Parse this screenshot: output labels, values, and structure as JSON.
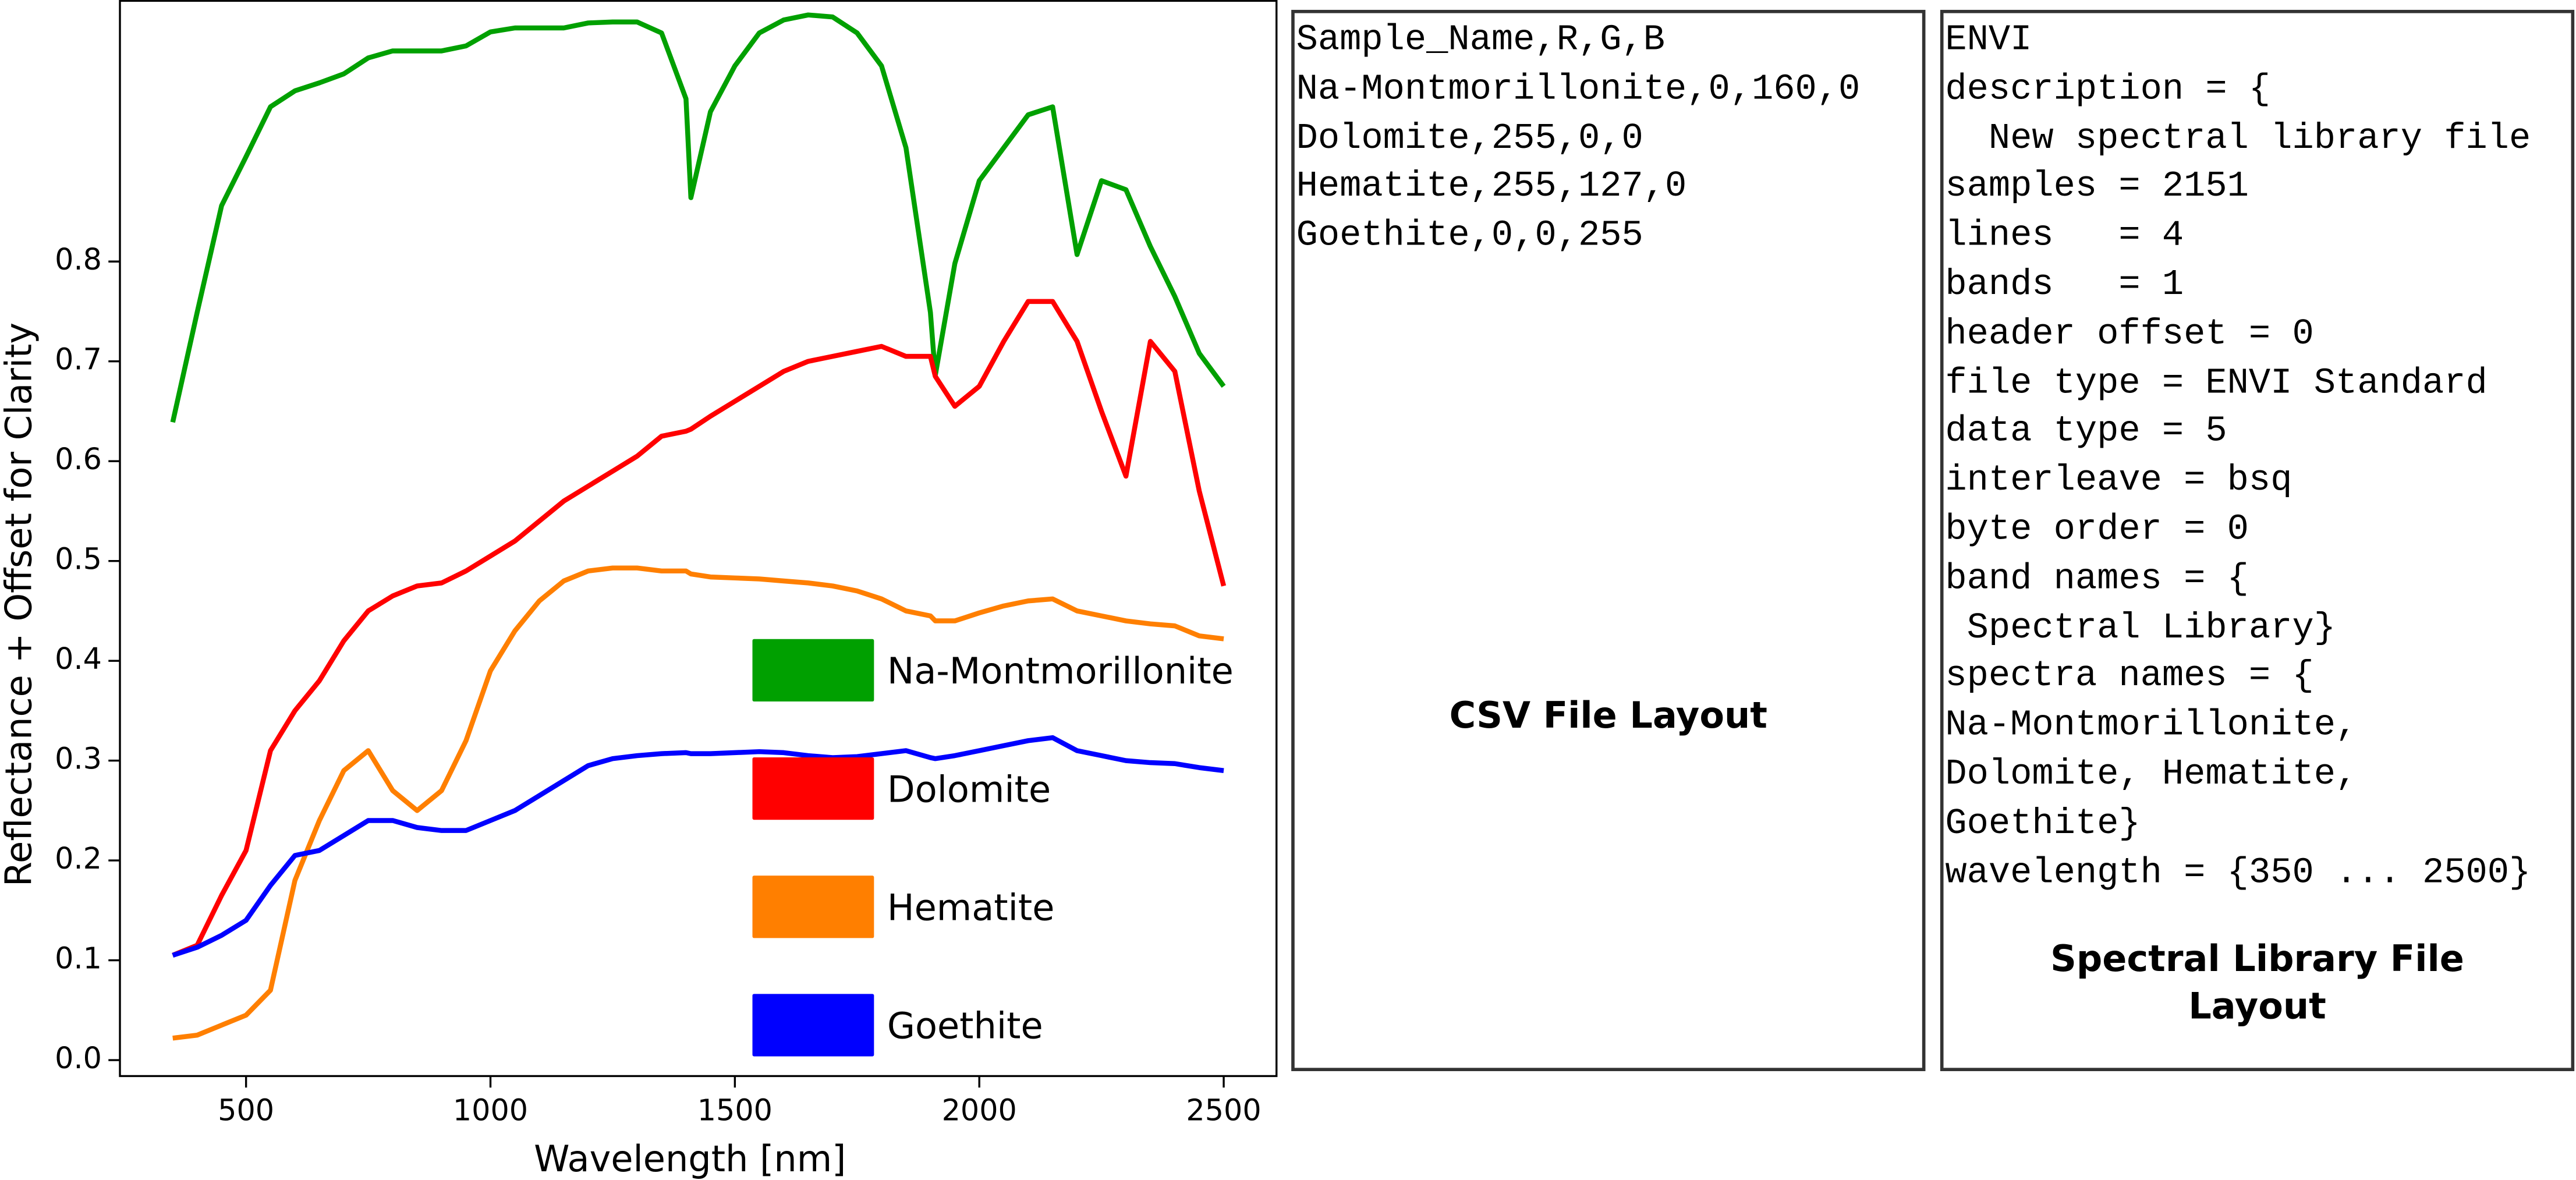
{
  "chart_data": {
    "type": "line",
    "xlabel": "Wavelength [nm]",
    "ylabel": "Reflectance + Offset for Clarity",
    "x": [
      350,
      400,
      450,
      500,
      550,
      600,
      650,
      700,
      750,
      800,
      850,
      900,
      950,
      1000,
      1050,
      1100,
      1150,
      1200,
      1250,
      1300,
      1350,
      1400,
      1410,
      1450,
      1500,
      1550,
      1600,
      1650,
      1700,
      1750,
      1800,
      1850,
      1900,
      1910,
      1950,
      2000,
      2050,
      2100,
      2150,
      2200,
      2250,
      2300,
      2350,
      2400,
      2450,
      2500
    ],
    "series": [
      {
        "name": "Na-Montmorillonite",
        "color": "#00a000",
        "values": [
          0.639,
          0.749,
          0.856,
          0.905,
          0.955,
          0.971,
          0.979,
          0.988,
          1.004,
          1.011,
          1.011,
          1.011,
          1.016,
          1.03,
          1.034,
          1.034,
          1.034,
          1.039,
          1.04,
          1.04,
          1.029,
          0.963,
          0.864,
          0.95,
          0.996,
          1.029,
          1.042,
          1.047,
          1.045,
          1.029,
          0.996,
          0.914,
          0.749,
          0.686,
          0.798,
          0.881,
          0.914,
          0.947,
          0.955,
          0.807,
          0.881,
          0.872,
          0.815,
          0.765,
          0.708,
          0.675
        ]
      },
      {
        "name": "Dolomite",
        "color": "#ff0000",
        "values": [
          0.105,
          0.115,
          0.165,
          0.21,
          0.31,
          0.35,
          0.38,
          0.42,
          0.45,
          0.465,
          0.475,
          0.478,
          0.49,
          0.505,
          0.52,
          0.54,
          0.56,
          0.575,
          0.59,
          0.605,
          0.625,
          0.63,
          0.632,
          0.645,
          0.66,
          0.675,
          0.69,
          0.7,
          0.705,
          0.71,
          0.715,
          0.705,
          0.705,
          0.685,
          0.655,
          0.675,
          0.72,
          0.76,
          0.76,
          0.72,
          0.65,
          0.585,
          0.72,
          0.69,
          0.57,
          0.475
        ]
      },
      {
        "name": "Hematite",
        "color": "#ff7f00",
        "values": [
          0.022,
          0.025,
          0.035,
          0.045,
          0.07,
          0.18,
          0.24,
          0.29,
          0.31,
          0.27,
          0.25,
          0.27,
          0.32,
          0.39,
          0.43,
          0.46,
          0.48,
          0.49,
          0.493,
          0.493,
          0.49,
          0.49,
          0.487,
          0.484,
          0.483,
          0.482,
          0.48,
          0.478,
          0.475,
          0.47,
          0.462,
          0.45,
          0.445,
          0.44,
          0.44,
          0.448,
          0.455,
          0.46,
          0.462,
          0.45,
          0.445,
          0.44,
          0.437,
          0.435,
          0.425,
          0.422
        ]
      },
      {
        "name": "Goethite",
        "color": "#0000ff",
        "values": [
          0.105,
          0.113,
          0.125,
          0.14,
          0.175,
          0.205,
          0.21,
          0.225,
          0.24,
          0.24,
          0.233,
          0.23,
          0.23,
          0.24,
          0.25,
          0.265,
          0.28,
          0.295,
          0.302,
          0.305,
          0.307,
          0.308,
          0.307,
          0.307,
          0.308,
          0.309,
          0.308,
          0.305,
          0.303,
          0.304,
          0.307,
          0.31,
          0.303,
          0.302,
          0.305,
          0.31,
          0.315,
          0.32,
          0.323,
          0.31,
          0.305,
          0.3,
          0.298,
          0.297,
          0.293,
          0.29
        ]
      }
    ],
    "xlim": [
      242,
      2608
    ],
    "ylim": [
      -0.016,
      1.062
    ],
    "xticks": [
      500,
      1000,
      1500,
      2000,
      2500
    ],
    "yticks": [
      {
        "value": 0,
        "label": "0.0"
      },
      0.1,
      0.2,
      0.3,
      0.4,
      0.5,
      0.6,
      0.7,
      0.8
    ]
  },
  "csv_panel": {
    "lines": [
      "Sample_Name,R,G,B",
      "Na-Montmorillonite,0,160,0",
      "Dolomite,255,0,0",
      "Hematite,255,127,0",
      "Goethite,0,0,255"
    ],
    "title": "CSV File Layout"
  },
  "spectral_library_panel": {
    "lines": [
      "ENVI",
      "description = {",
      "  New spectral library file",
      "samples = 2151",
      "lines   = 4",
      "bands   = 1",
      "header offset = 0",
      "file type = ENVI Standard",
      "data type = 5",
      "interleave = bsq",
      "byte order = 0",
      "band names = {",
      " Spectral Library}",
      "spectra names = {",
      "Na-Montmorillonite,",
      "Dolomite, Hematite,",
      "Goethite}",
      "wavelength = {350 ... 2500}"
    ],
    "title": [
      "Spectral Library File",
      "Layout"
    ]
  }
}
